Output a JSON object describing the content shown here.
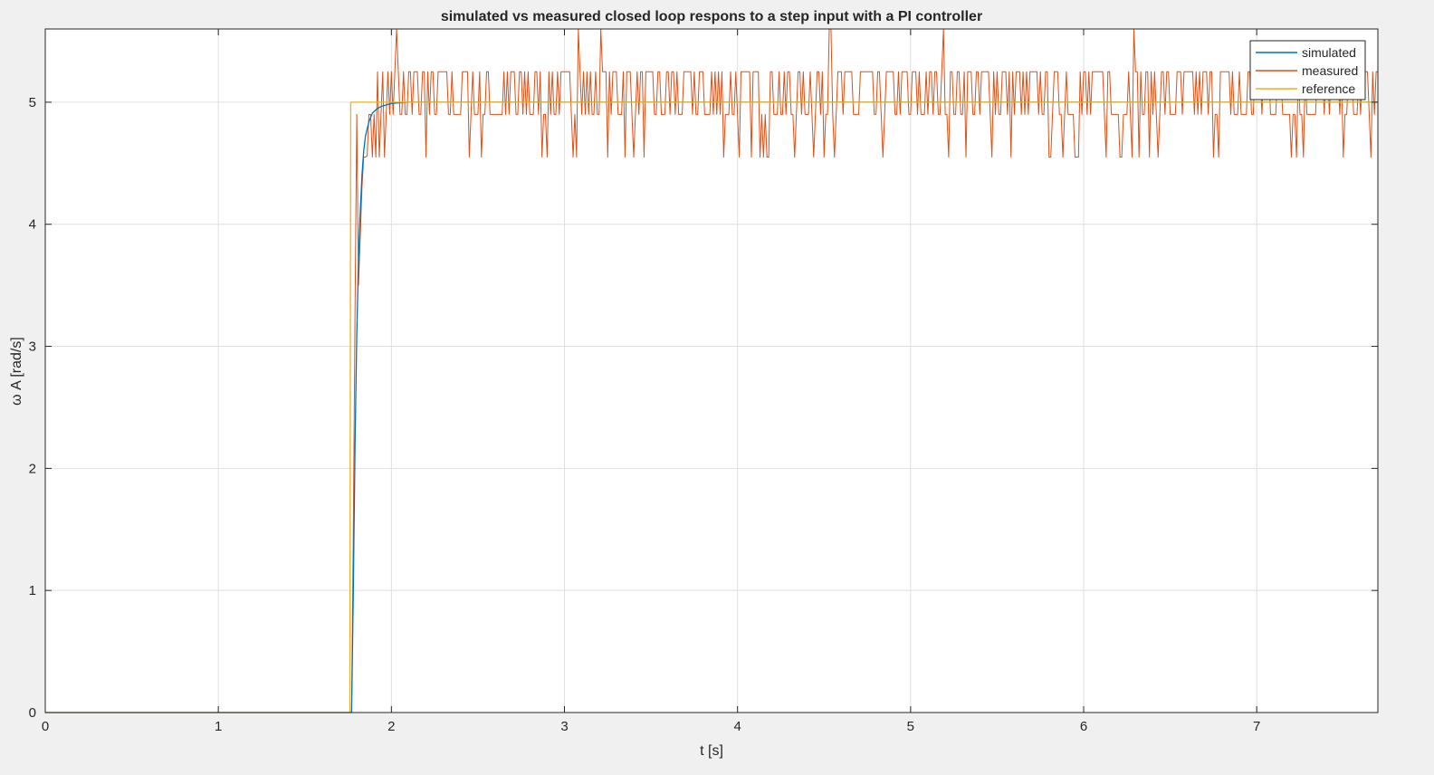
{
  "chart_data": {
    "type": "line",
    "title": "simulated vs measured closed loop respons to a step input with a PI controller",
    "xlabel": "t [s]",
    "ylabel": "ω A [rad/s]",
    "xlim": [
      0,
      7.7
    ],
    "ylim": [
      0,
      5.6
    ],
    "xticks": [
      0,
      1,
      2,
      3,
      4,
      5,
      6,
      7
    ],
    "yticks": [
      0,
      1,
      2,
      3,
      4,
      5
    ],
    "grid": true,
    "legend_position": "top-right",
    "colors": {
      "simulated": "#0072BD",
      "measured": "#D95319",
      "reference": "#EDB120",
      "background": "#f0f0f0",
      "axes": "#ffffff",
      "grid": "#dfdfdf"
    },
    "series": [
      {
        "name": "simulated",
        "x": [
          0,
          1.77,
          1.78,
          1.79,
          1.8,
          1.81,
          1.82,
          1.83,
          1.84,
          1.85,
          1.87,
          1.89,
          1.92,
          1.95,
          2.0,
          2.1,
          2.2,
          7.7
        ],
        "y": [
          0,
          0,
          1.0,
          2.2,
          3.1,
          3.7,
          4.1,
          4.4,
          4.6,
          4.72,
          4.84,
          4.91,
          4.95,
          4.97,
          4.99,
          5.0,
          5.0,
          5.0
        ]
      },
      {
        "name": "measured",
        "x": [
          0,
          1.77,
          1.78,
          1.79,
          1.8,
          1.81,
          1.82,
          1.83,
          1.84,
          1.85,
          1.86,
          1.87,
          1.88,
          1.89,
          1.9,
          1.91,
          1.92,
          1.93,
          1.94,
          1.95,
          1.96,
          1.97,
          1.98,
          1.99,
          2.0,
          2.01,
          2.02
        ],
        "y": [
          0,
          0,
          1.5,
          3.3,
          4.9,
          3.5,
          3.9,
          4.3,
          4.55,
          4.55,
          4.56,
          4.9,
          4.9,
          4.55,
          4.9,
          4.55,
          5.25,
          4.55,
          4.9,
          5.25,
          4.55,
          4.9,
          5.25,
          4.9,
          5.25,
          4.9,
          5.25
        ],
        "steady_levels": [
          4.55,
          4.9,
          5.25,
          5.6
        ],
        "steady_from": 2.02
      },
      {
        "name": "reference",
        "x": [
          0,
          1.76,
          1.765,
          7.7
        ],
        "y": [
          0,
          0,
          5.0,
          5.0
        ]
      }
    ]
  }
}
